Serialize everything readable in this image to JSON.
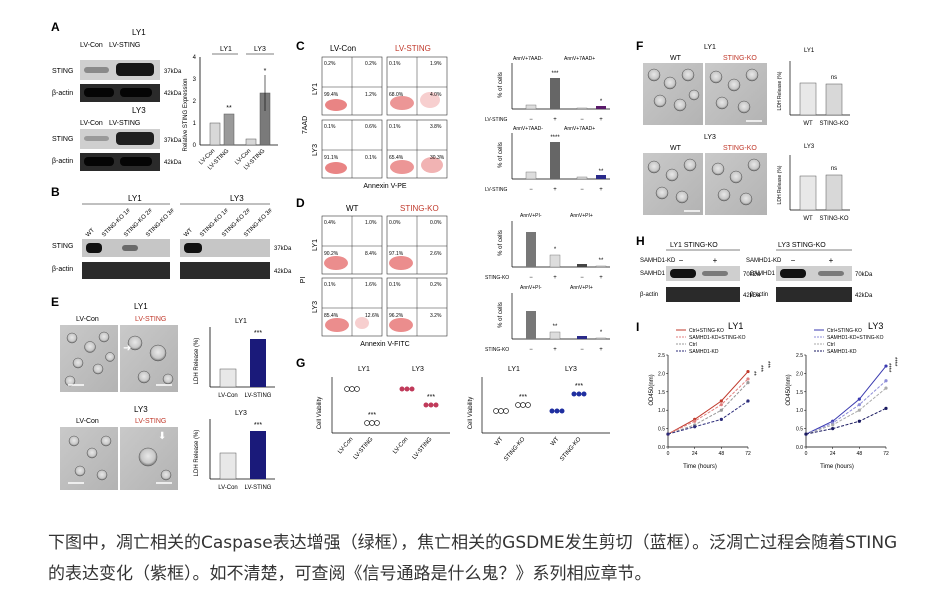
{
  "panels": {
    "A": {
      "letter": "A",
      "ly1": "LY1",
      "ly3": "LY3",
      "lanes": [
        "LV-Con",
        "LV-STING"
      ],
      "rows": [
        "STING",
        "β-actin"
      ],
      "kda": [
        "37kDa",
        "42kDa"
      ],
      "ylabel": "Relative STING Expression",
      "groups": [
        "LY1",
        "LY3"
      ],
      "xcats": [
        "LV-Con",
        "LV-STING",
        "LV-Con",
        "LV-STING"
      ],
      "sig": [
        "**",
        "*"
      ],
      "yticks": [
        "0",
        "1",
        "2",
        "3",
        "4"
      ]
    },
    "B": {
      "letter": "B",
      "ly1": "LY1",
      "ly3": "LY3",
      "lanes": [
        "WT",
        "STING-KO 1#",
        "STING-KO 2#",
        "STING-KO 3#"
      ],
      "rows": [
        "STING",
        "β-actin"
      ],
      "kda": [
        "37kDa",
        "42kDa"
      ]
    },
    "C": {
      "letter": "C",
      "con": "LV-Con",
      "sting": "LV-STING",
      "rowlabels": [
        "LY1",
        "LY3"
      ],
      "ylabel": "7AAD",
      "xlabel": "Annexin V-PE",
      "quads": [
        [
          "0.2%",
          "0.2%",
          "99.4%",
          "1.2%"
        ],
        [
          "0.1%",
          "1.9%",
          "68.0%",
          "4.0%"
        ],
        [
          "0.1%",
          "0.6%",
          "91.1%",
          "0.1%"
        ],
        [
          "0.1%",
          "3.8%",
          "65.4%",
          "30.3%"
        ]
      ],
      "bar_titles": [
        "AnnV+7AAD-",
        "AnnV+7AAD+"
      ],
      "bar_ylabel": "% of cells",
      "bar_xlabel": "LV-STING",
      "signs": [
        "−",
        "+",
        "−",
        "+"
      ],
      "sig1": [
        "***",
        "*"
      ],
      "sig2": [
        "****",
        "**"
      ]
    },
    "D": {
      "letter": "D",
      "wt": "WT",
      "ko": "STING-KO",
      "rowlabels": [
        "LY1",
        "LY3"
      ],
      "ylabel": "PI",
      "xlabel": "Annexin V-FITC",
      "quads": [
        [
          "0.4%",
          "1.0%",
          "90.2%",
          "8.4%"
        ],
        [
          "0.0%",
          "0.0%",
          "97.1%",
          "2.6%"
        ],
        [
          "0.1%",
          "1.6%",
          "85.4%",
          "12.6%"
        ],
        [
          "0.1%",
          "0.2%",
          "96.2%",
          "3.2%"
        ]
      ],
      "bar_titles": [
        "AnnV+PI-",
        "AnnV+PI+"
      ],
      "bar_ylabel": "% of cells",
      "bar_xlabel": "STING-KO",
      "signs": [
        "−",
        "+",
        "−",
        "+"
      ],
      "sig1": [
        "*",
        "**"
      ],
      "sig2": [
        "**",
        "*"
      ]
    },
    "E": {
      "letter": "E",
      "ly1": "LY1",
      "ly3": "LY3",
      "con": "LV-Con",
      "sting": "LV-STING",
      "ylabel": "LDH Release (%)",
      "xcats": [
        "LV-Con",
        "LV-STING"
      ],
      "sig": "***"
    },
    "F": {
      "letter": "F",
      "ly1": "LY1",
      "ly3": "LY3",
      "wt": "WT",
      "ko": "STING-KO",
      "ylabel": "LDH Release (%)",
      "xcats": [
        "WT",
        "STING-KO"
      ],
      "sig": "ns"
    },
    "G": {
      "letter": "G",
      "ylabel": "Cell Viability",
      "groups": [
        "LY1",
        "LY3"
      ],
      "left_cats": [
        "LV-Con",
        "LV-STING",
        "LV-Con",
        "LV-STING"
      ],
      "right_cats": [
        "WT",
        "STING-KO",
        "WT",
        "STING-KO"
      ],
      "sig": "***"
    },
    "H": {
      "letter": "H",
      "ly1": "LY1 STING-KO",
      "ly3": "LY3 STING-KO",
      "kd": "SAMHD1-KD",
      "signs": [
        "−",
        "+"
      ],
      "rows": [
        "SAMHD1",
        "β-actin"
      ],
      "kda": [
        "70kDa",
        "42kDa"
      ]
    },
    "I": {
      "letter": "I",
      "ly1": "LY1",
      "ly3": "LY3",
      "ylabel": "OD450(nm)",
      "xlabel": "Time (hours)",
      "legend": [
        "Ctrl+STING-KO",
        "SAMHD1-KD+STING-KO",
        "Ctrl",
        "SAMHD1-KD"
      ],
      "sig_ly1": [
        "**",
        "***",
        "***"
      ],
      "sig_ly3": [
        "****",
        "****",
        "****"
      ]
    }
  },
  "chart_data": [
    {
      "type": "line",
      "title": "LY1",
      "x": [
        0,
        24,
        48,
        72
      ],
      "xlabel": "Time (hours)",
      "ylabel": "OD450(nm)",
      "ylim": [
        0,
        2.5
      ],
      "yticks": [
        "0.0",
        "0.5",
        "1.0",
        "1.5",
        "2.0",
        "2.5"
      ],
      "xticks": [
        "0",
        "24",
        "48",
        "72"
      ],
      "series": [
        {
          "name": "Ctrl+STING-KO",
          "values": [
            0.35,
            0.75,
            1.25,
            2.05
          ],
          "color": "#c0392b"
        },
        {
          "name": "SAMHD1-KD+STING-KO",
          "values": [
            0.35,
            0.7,
            1.15,
            1.85
          ],
          "color": "#e08080"
        },
        {
          "name": "Ctrl",
          "values": [
            0.35,
            0.6,
            1.0,
            1.75
          ],
          "color": "#999999"
        },
        {
          "name": "SAMHD1-KD",
          "values": [
            0.35,
            0.55,
            0.75,
            1.25
          ],
          "color": "#2c2c7a"
        }
      ]
    },
    {
      "type": "line",
      "title": "LY3",
      "x": [
        0,
        24,
        48,
        72
      ],
      "xlabel": "Time (hours)",
      "ylabel": "OD450(nm)",
      "ylim": [
        0,
        2.5
      ],
      "yticks": [
        "0.0",
        "0.5",
        "1.0",
        "1.5",
        "2.0",
        "2.5"
      ],
      "xticks": [
        "0",
        "24",
        "48",
        "72"
      ],
      "series": [
        {
          "name": "Ctrl+STING-KO",
          "values": [
            0.35,
            0.7,
            1.3,
            2.2
          ],
          "color": "#3a3ab0"
        },
        {
          "name": "SAMHD1-KD+STING-KO",
          "values": [
            0.35,
            0.65,
            1.15,
            1.8
          ],
          "color": "#8c8cd8"
        },
        {
          "name": "Ctrl",
          "values": [
            0.35,
            0.6,
            1.0,
            1.6
          ],
          "color": "#aaaaaa"
        },
        {
          "name": "SAMHD1-KD",
          "values": [
            0.35,
            0.5,
            0.7,
            1.05
          ],
          "color": "#1a1a60"
        }
      ]
    }
  ],
  "caption": "下图中，凋亡相关的Caspase表达增强（绿框），焦亡相关的GSDME发生剪切（蓝框）。泛凋亡过程会随着STING的表达变化（紫框）。如不清楚，可查阅《信号通路是什么鬼？》系列相应章节。"
}
